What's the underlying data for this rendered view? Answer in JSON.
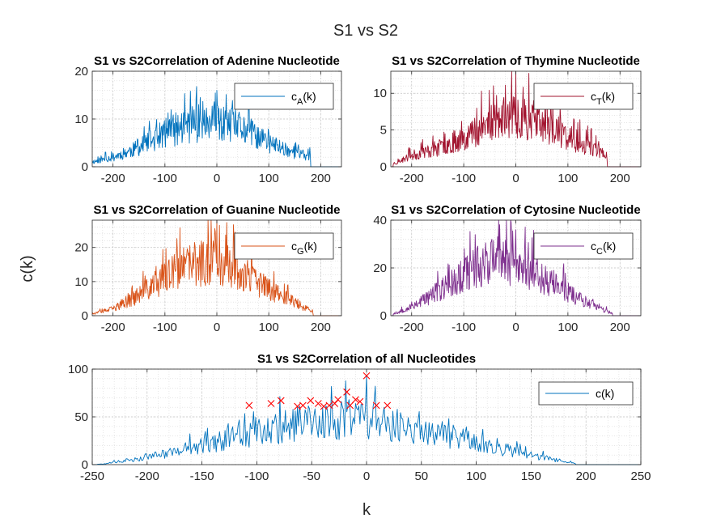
{
  "figure": {
    "title": "S1 vs S2",
    "ylabel": "c(k)",
    "xlabel": "k"
  },
  "chart_data": [
    {
      "type": "line",
      "title": "S1 vs S2Correlation of Adenine Nucleotide",
      "xlim": [
        -240,
        240
      ],
      "ylim": [
        0,
        20
      ],
      "xticks": [
        -200,
        -100,
        0,
        100,
        200
      ],
      "yticks": [
        0,
        10,
        20
      ],
      "grid": true,
      "legend": "top-right",
      "series": [
        {
          "name": "c_A(k)",
          "legend_main": "c",
          "legend_sub": "A",
          "legend_tail": "(k)",
          "color": "#0072BD",
          "envelope_x": [
            -240,
            -200,
            -150,
            -100,
            -50,
            0,
            50,
            100,
            150,
            180
          ],
          "envelope_y": [
            1,
            2,
            4,
            7,
            9,
            9,
            8,
            5,
            3,
            2
          ],
          "peak_y": 16,
          "seed": 11
        }
      ]
    },
    {
      "type": "line",
      "title": "S1 vs S2Correlation of Thymine Nucleotide",
      "xlim": [
        -240,
        240
      ],
      "ylim": [
        0,
        13
      ],
      "xticks": [
        -200,
        -100,
        0,
        100,
        200
      ],
      "yticks": [
        0,
        5,
        10
      ],
      "grid": true,
      "legend": "top-right",
      "series": [
        {
          "name": "c_T(k)",
          "legend_main": "c",
          "legend_sub": "T",
          "legend_tail": "(k)",
          "color": "#A2142F",
          "envelope_x": [
            -230,
            -200,
            -150,
            -100,
            -50,
            0,
            50,
            100,
            150,
            175
          ],
          "envelope_y": [
            0.5,
            1.5,
            2.5,
            4,
            6,
            7,
            6,
            4,
            2.5,
            1.5
          ],
          "peak_y": 13,
          "seed": 23
        }
      ]
    },
    {
      "type": "line",
      "title": "S1 vs S2Correlation of Guanine Nucleotide",
      "xlim": [
        -240,
        240
      ],
      "ylim": [
        0,
        28
      ],
      "xticks": [
        -200,
        -100,
        0,
        100,
        200
      ],
      "yticks": [
        0,
        10,
        20
      ],
      "grid": true,
      "legend": "top-right",
      "series": [
        {
          "name": "c_G(k)",
          "legend_main": "c",
          "legend_sub": "G",
          "legend_tail": "(k)",
          "color": "#D95319",
          "envelope_x": [
            -240,
            -200,
            -150,
            -100,
            -50,
            0,
            50,
            100,
            150,
            185
          ],
          "envelope_y": [
            0.5,
            2,
            6,
            11,
            15,
            16,
            12,
            8,
            4,
            1
          ],
          "peak_y": 28,
          "seed": 37
        }
      ]
    },
    {
      "type": "line",
      "title": "S1 vs S2Correlation of Cytosine Nucleotide",
      "xlim": [
        -240,
        240
      ],
      "ylim": [
        0,
        40
      ],
      "xticks": [
        -200,
        -100,
        0,
        100,
        200
      ],
      "yticks": [
        0,
        20,
        40
      ],
      "grid": true,
      "legend": "top-right",
      "series": [
        {
          "name": "c_C(k)",
          "legend_main": "c",
          "legend_sub": "C",
          "legend_tail": "(k)",
          "color": "#7E2F8E",
          "envelope_x": [
            -230,
            -200,
            -150,
            -100,
            -50,
            0,
            50,
            100,
            150,
            185
          ],
          "envelope_y": [
            1,
            4,
            10,
            17,
            24,
            22,
            16,
            10,
            4,
            1
          ],
          "peak_y": 36,
          "seed": 53
        }
      ]
    },
    {
      "type": "line",
      "title": "S1 vs S2Correlation of all Nucleotides",
      "xlim": [
        -250,
        250
      ],
      "ylim": [
        0,
        100
      ],
      "xticks": [
        -250,
        -200,
        -150,
        -100,
        -50,
        0,
        50,
        100,
        150,
        200,
        250
      ],
      "yticks": [
        0,
        50,
        100
      ],
      "grid": true,
      "legend": "top-right",
      "series": [
        {
          "name": "c(k)",
          "legend_main": "c(k)",
          "legend_sub": "",
          "legend_tail": "",
          "color": "#0072BD",
          "envelope_x": [
            -240,
            -200,
            -150,
            -100,
            -50,
            0,
            50,
            100,
            150,
            190
          ],
          "envelope_y": [
            0.5,
            8,
            20,
            35,
            45,
            48,
            38,
            22,
            10,
            1
          ],
          "peak_y": 93,
          "seed": 71
        }
      ],
      "peaks": {
        "marker": "x",
        "color": "#FF0000",
        "points": [
          [
            -107,
            62
          ],
          [
            -87,
            64
          ],
          [
            -78,
            67
          ],
          [
            -63,
            61
          ],
          [
            -58,
            62
          ],
          [
            -51,
            67
          ],
          [
            -44,
            64
          ],
          [
            -39,
            61
          ],
          [
            -34,
            62
          ],
          [
            -29,
            64
          ],
          [
            -26,
            68
          ],
          [
            -18,
            76
          ],
          [
            -15,
            62
          ],
          [
            -10,
            68
          ],
          [
            -6,
            66
          ],
          [
            0,
            93
          ],
          [
            9,
            62
          ],
          [
            19,
            62
          ]
        ]
      }
    }
  ]
}
